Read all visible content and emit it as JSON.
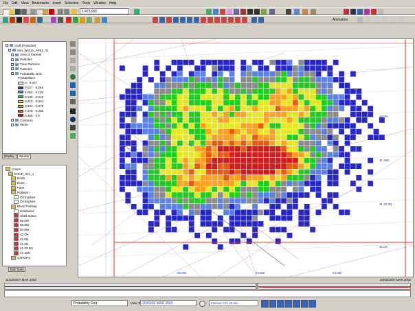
{
  "menu": [
    "File",
    "Edit",
    "View",
    "Bookmarks",
    "Insert",
    "Selection",
    "Tools",
    "Window",
    "Help"
  ],
  "toolbar": {
    "scale_value": "1:473,000",
    "effects_label": "Animation"
  },
  "toc": {
    "tab_display": "Display",
    "tab_source": "Source",
    "root_label": "Cloff (Particles)",
    "dataset_label": "Sim_WSUS_AP82_01",
    "layers": [
      "Area of Interest",
      "Particles",
      "Time Particles",
      "Particles"
    ],
    "prob_layer": "Probability Grid",
    "prob_sub": "Probabilities",
    "legend": [
      {
        "label": "0 - 0.027",
        "color": "#ffffff"
      },
      {
        "label": "0.027 - 0.054",
        "color": "#2828c8"
      },
      {
        "label": "0.054 - 0.135",
        "color": "#5a82e6"
      },
      {
        "label": "0.135 - 0.216",
        "color": "#22cc22"
      },
      {
        "label": "0.216 - 0.324",
        "color": "#e6e628"
      },
      {
        "label": "0.324 - 0.378",
        "color": "#ffa020"
      },
      {
        "label": "0.378 - 0.405",
        "color": "#e85a10"
      },
      {
        "label": "0.405 - 0.5",
        "color": "#cc1e1e"
      }
    ],
    "after": [
      "Contours",
      "Vents"
    ]
  },
  "tree2": {
    "tab": "Edit Tools",
    "items": [
      "Cases",
      "EGAP_Sim_1",
      "EnvD",
      "EnvC",
      "Fans",
      "Pollution",
      "Oil Explore",
      "Oil Explore",
      "Block Position",
      "Unlabeled",
      "Shell status",
      "65.0W",
      "65.5W",
      "64.5W",
      "42.0N",
      "41.5N",
      "41.0N",
      "41 20.0N",
      "41 40N",
      "SAROPS"
    ]
  },
  "map": {
    "labels": {
      "lon1": "42.0N",
      "lon2": "41 40N",
      "lon3": "41 20.0N",
      "lon4": "41.0N",
      "bottom1": "65.0W",
      "bottom2": "64.5W",
      "bottom3": "64.0W"
    }
  },
  "timeline": {
    "start": "11/12/2007 MAR 2003",
    "end": "20/03/2007 MAR 2003"
  },
  "bottombar": {
    "layer": "Probability Grid",
    "view_time_label": "View Time",
    "view_time": "20/03/02 MAR 2003",
    "interval": "Interval: 0 hr 25 min"
  }
}
